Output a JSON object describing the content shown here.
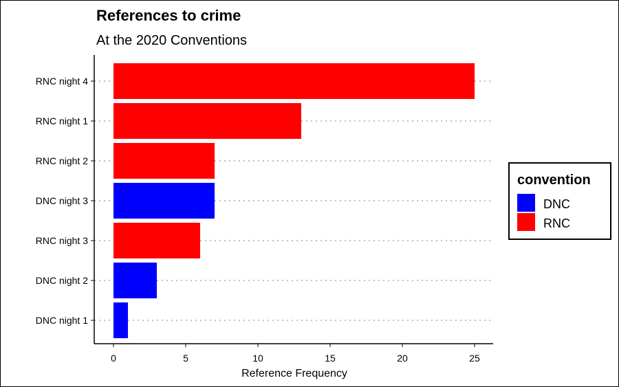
{
  "chart_data": {
    "type": "bar",
    "orientation": "horizontal",
    "title": "References to crime",
    "subtitle": "At the 2020 Conventions",
    "xlabel": "Reference Frequency",
    "ylabel": "",
    "categories": [
      "RNC night 4",
      "RNC night 1",
      "RNC night 2",
      "DNC night 3",
      "RNC night 3",
      "DNC night 2",
      "DNC night 1"
    ],
    "values": [
      25,
      13,
      7,
      7,
      6,
      3,
      1
    ],
    "groups": [
      "RNC",
      "RNC",
      "RNC",
      "DNC",
      "RNC",
      "DNC",
      "DNC"
    ],
    "xlim": [
      0,
      25
    ],
    "xticks": [
      0,
      5,
      10,
      15,
      20,
      25
    ],
    "grid": "horizontal-dotted",
    "legend": {
      "title": "convention",
      "placement": "right",
      "entries": [
        {
          "name": "DNC",
          "color": "#0000ff"
        },
        {
          "name": "RNC",
          "color": "#ff0000"
        }
      ]
    }
  }
}
